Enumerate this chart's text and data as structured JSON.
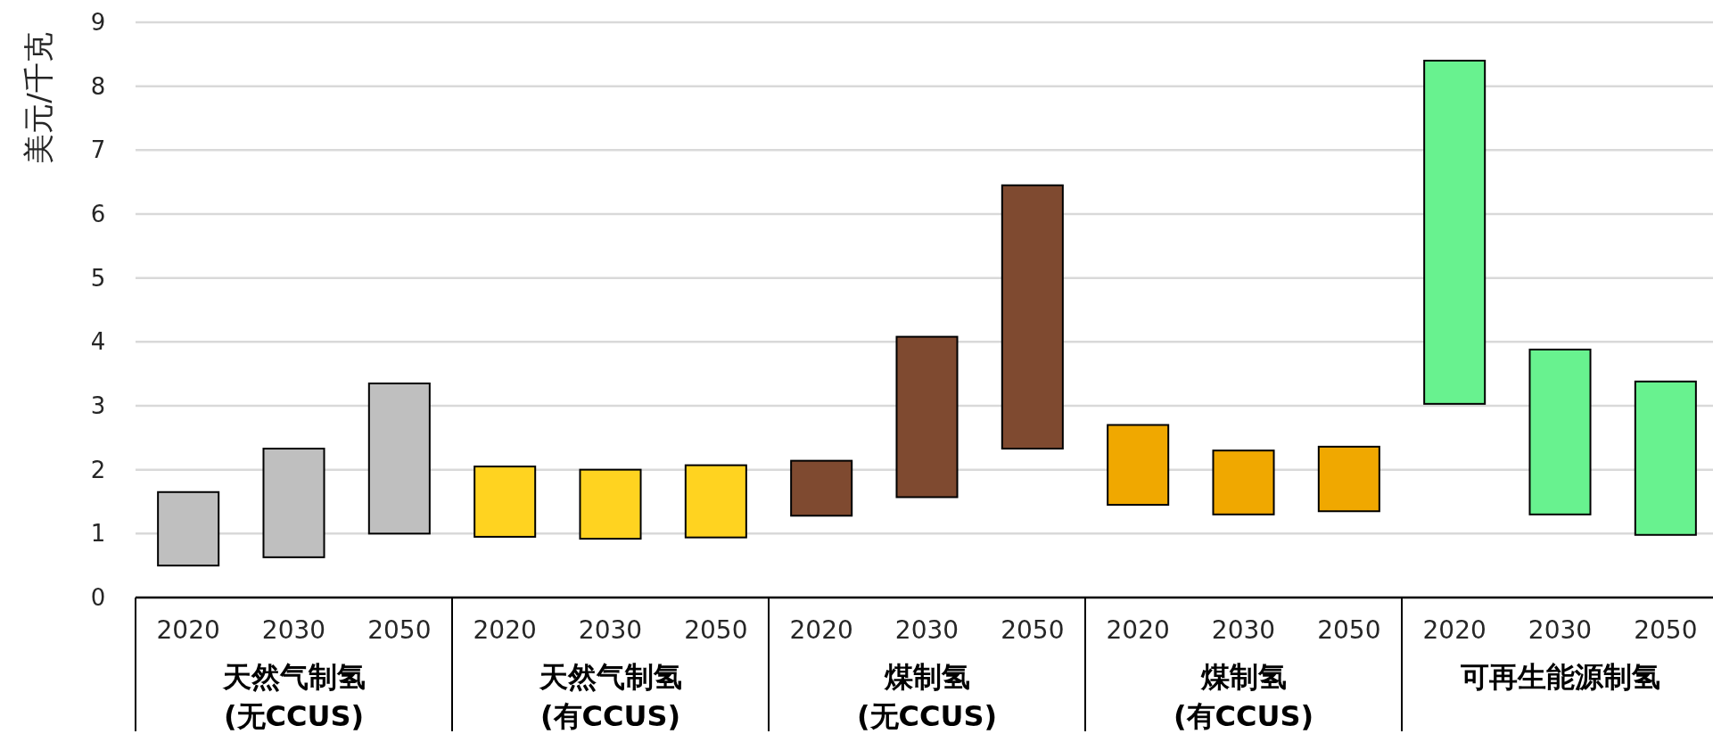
{
  "chart_data": {
    "type": "bar",
    "ylabel": "美元/千克",
    "categories": [
      "2020",
      "2030",
      "2050",
      "2020",
      "2030",
      "2050",
      "2020",
      "2030",
      "2050",
      "2020",
      "2030",
      "2050",
      "2020",
      "2030",
      "2050"
    ],
    "base": [
      0.5,
      0.63,
      1.0,
      0.95,
      0.92,
      0.94,
      1.28,
      1.57,
      2.33,
      1.45,
      1.3,
      1.35,
      3.03,
      1.3,
      0.98
    ],
    "values": [
      1.15,
      1.7,
      2.35,
      1.1,
      1.08,
      1.13,
      0.86,
      2.51,
      4.12,
      1.25,
      1.0,
      1.01,
      5.37,
      2.58,
      2.4
    ],
    "colors": [
      "#bfbfbf",
      "#bfbfbf",
      "#bfbfbf",
      "#ffd320",
      "#ffd320",
      "#ffd320",
      "#7f4a30",
      "#7f4a30",
      "#7f4a30",
      "#f0a800",
      "#f0a800",
      "#f0a800",
      "#68f28f",
      "#68f28f",
      "#68f28f"
    ],
    "annotations": [
      "天然气制氢 (无CCUS)",
      "天然气制氢 (有CCUS)",
      "煤制氢 (无CCUS)",
      "煤制氢 (有CCUS)",
      "可再生能源制氢"
    ],
    "ylim": [
      0,
      9
    ],
    "yticks": [
      0,
      1,
      2,
      3,
      4,
      5,
      6,
      7,
      8,
      9
    ],
    "grid": "y"
  }
}
